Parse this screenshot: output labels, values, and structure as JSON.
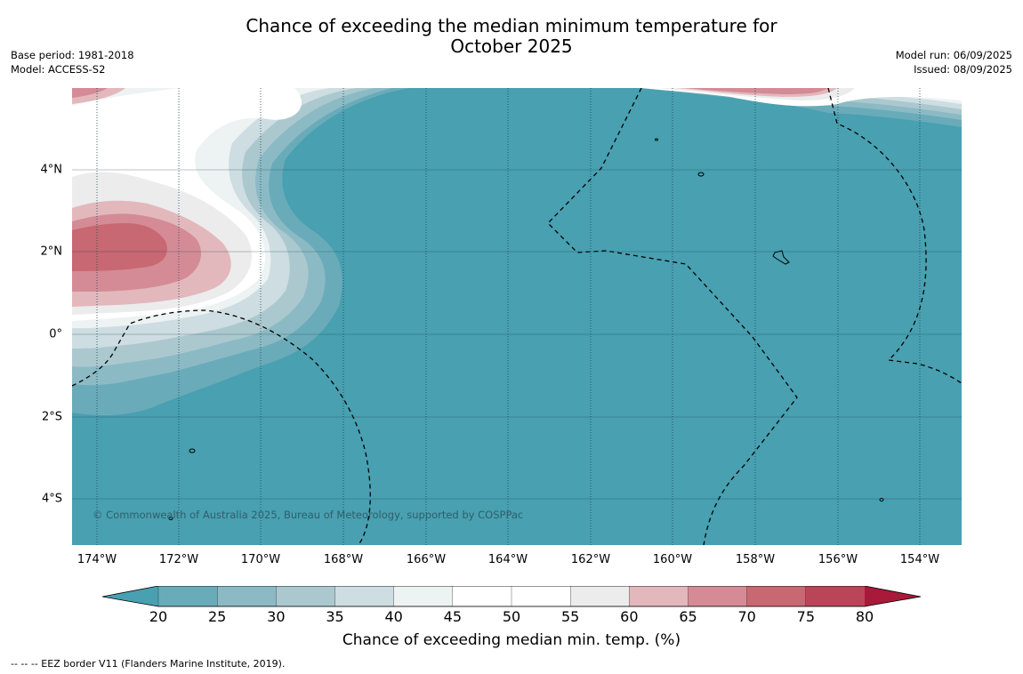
{
  "header": {
    "title_line1": "Chance of exceeding the median minimum temperature for",
    "title_line2": "October 2025",
    "base_period": "Base period: 1981-2018",
    "model": "Model: ACCESS-S2",
    "model_run": "Model run: 06/09/2025",
    "issued": "Issued: 08/09/2025"
  },
  "map": {
    "lat_labels": [
      "4°N",
      "2°N",
      "0°",
      "2°S",
      "4°S"
    ],
    "lon_labels": [
      "174°W",
      "172°W",
      "170°W",
      "168°W",
      "166°W",
      "164°W",
      "162°W",
      "160°W",
      "158°W",
      "156°W",
      "154°W"
    ],
    "copyright": "© Commonwealth of Australia 2025, Bureau of Meteorology, supported by COSPPac",
    "background_color": "#48a0b1"
  },
  "colorbar": {
    "ticks": [
      "20",
      "25",
      "30",
      "35",
      "40",
      "45",
      "50",
      "55",
      "60",
      "65",
      "70",
      "75",
      "80"
    ],
    "colors": [
      "#48a0b1",
      "#6aabb9",
      "#8bbac5",
      "#abc8cf",
      "#cddde1",
      "#edf2f3",
      "#ffffff",
      "#ffffff",
      "#ececec",
      "#e2b8bd",
      "#d48b95",
      "#c86872",
      "#bb4558",
      "#a8193a"
    ],
    "label": "Chance of exceeding median min. temp. (%)"
  },
  "footer": {
    "eez_note": "--  --  -- EEZ border V11 (Flanders Marine Institute, 2019)."
  }
}
